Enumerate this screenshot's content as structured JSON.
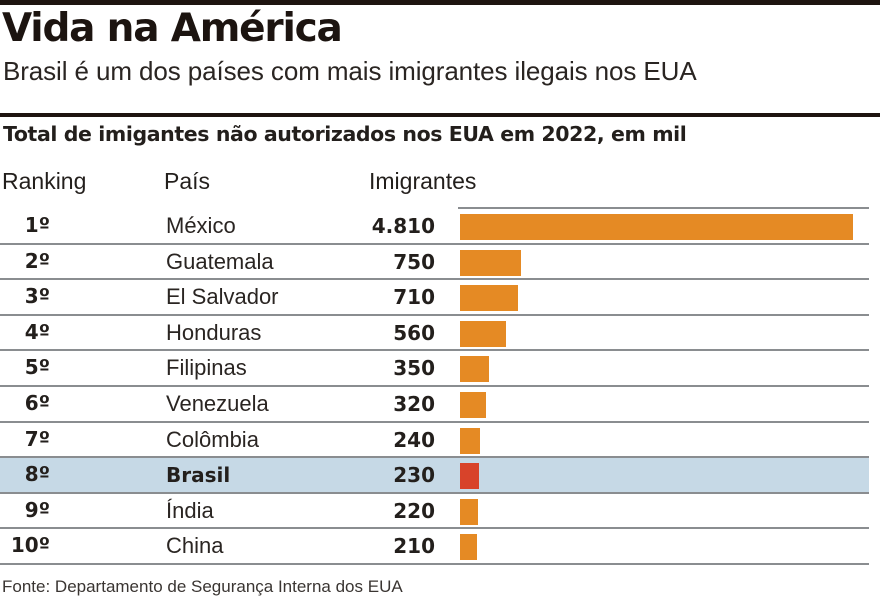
{
  "header": {
    "title": "Vida na América",
    "subtitle": "Brasil é um dos países com mais imigrantes ilegais nos EUA"
  },
  "chart_data": {
    "type": "bar",
    "orientation": "horizontal",
    "title": "Total de imigantes não autorizados nos EUA em 2022, em mil",
    "columns": [
      "Ranking",
      "País",
      "Imigrantes"
    ],
    "ranks": [
      "1º",
      "2º",
      "3º",
      "4º",
      "5º",
      "6º",
      "7º",
      "8º",
      "9º",
      "10º"
    ],
    "categories": [
      "México",
      "Guatemala",
      "El Salvador",
      "Honduras",
      "Filipinas",
      "Venezuela",
      "Colômbia",
      "Brasil",
      "Índia",
      "China"
    ],
    "values": [
      4810,
      750,
      710,
      560,
      350,
      320,
      240,
      230,
      220,
      210
    ],
    "value_labels": [
      "4.810",
      "750",
      "710",
      "560",
      "350",
      "320",
      "240",
      "230",
      "220",
      "210"
    ],
    "units": "mil",
    "highlight": "Brasil",
    "colors": {
      "bar": "#e58a24",
      "highlight_bar": "#d8432a",
      "highlight_row": "#c6d9e6"
    },
    "xlim": [
      0,
      4810
    ],
    "grid": false,
    "legend": "none"
  },
  "footer": {
    "source": "Fonte: Departamento de Segurança Interna dos EUA"
  }
}
